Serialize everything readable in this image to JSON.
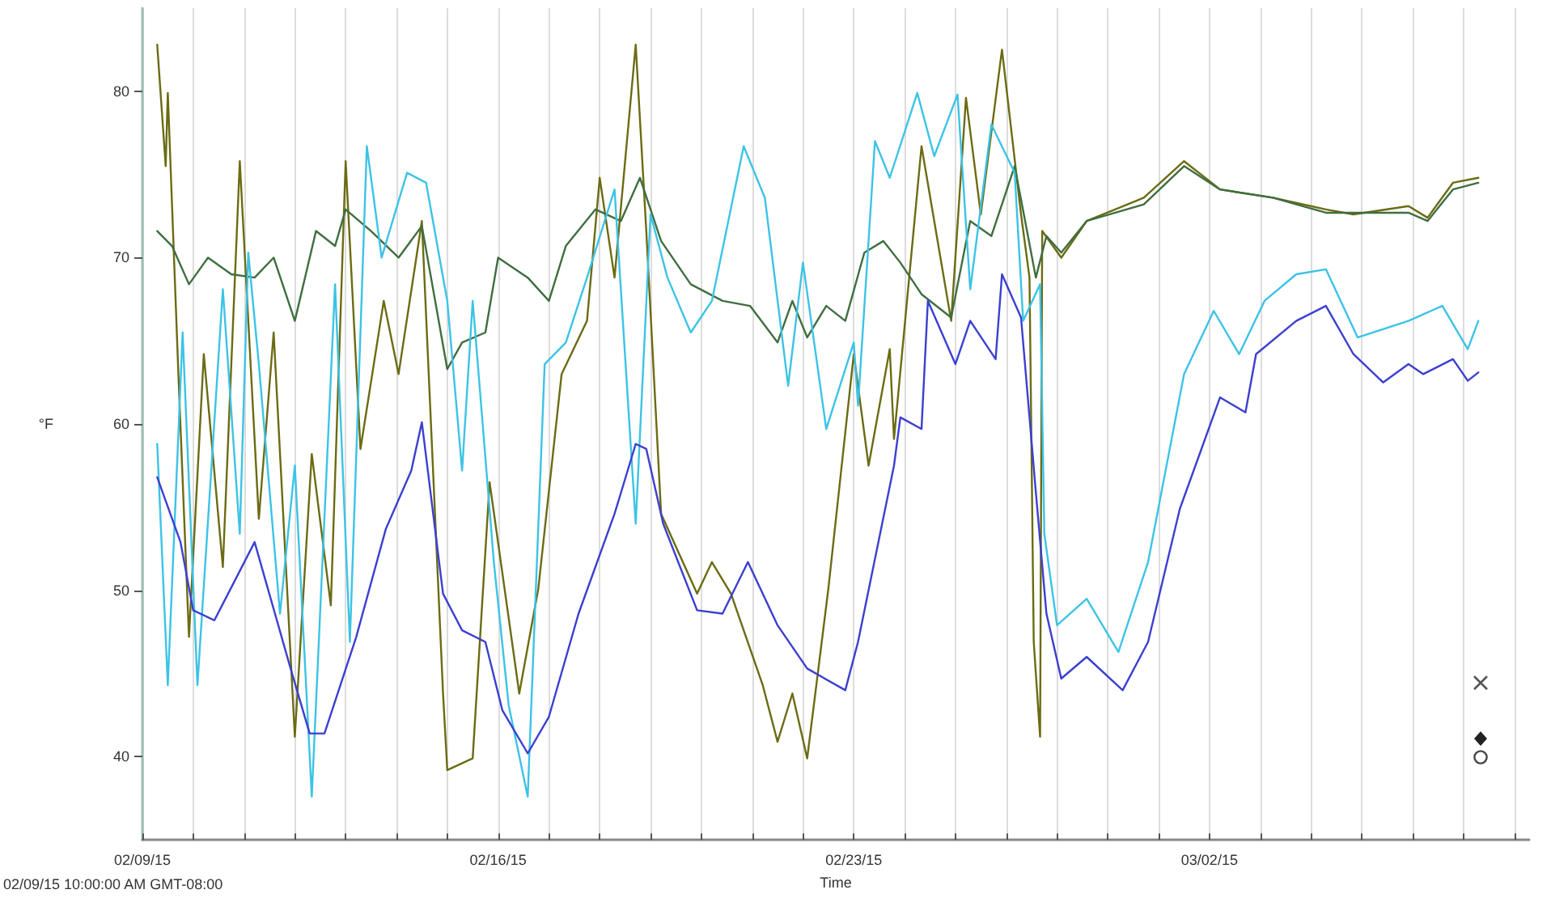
{
  "chart_data": {
    "type": "line",
    "xlabel": "Time",
    "ylabel": "°F",
    "annotations": [
      "02/09/15 10:00:00 AM GMT-08:00"
    ],
    "xlim": [
      "--02-09",
      "--03-08T07:00"
    ],
    "ylim": [
      35,
      85
    ],
    "xticks": [
      {
        "value": "--02-09",
        "label": "02/09/15"
      },
      {
        "value": "--02-10",
        "label": null
      },
      {
        "value": "--02-11",
        "label": null
      },
      {
        "value": "--02-12",
        "label": null
      },
      {
        "value": "--02-13",
        "label": null
      },
      {
        "value": "--02-14",
        "label": null
      },
      {
        "value": "--02-15",
        "label": null
      },
      {
        "value": "--02-16",
        "label": "02/16/15"
      },
      {
        "value": "--02-17",
        "label": null
      },
      {
        "value": "--02-18",
        "label": null
      },
      {
        "value": "--02-19",
        "label": null
      },
      {
        "value": "--02-20",
        "label": null
      },
      {
        "value": "--02-21",
        "label": null
      },
      {
        "value": "--02-22",
        "label": null
      },
      {
        "value": "--02-23",
        "label": "02/23/15"
      },
      {
        "value": "--02-24",
        "label": null
      },
      {
        "value": "--02-25",
        "label": null
      },
      {
        "value": "--02-26",
        "label": null
      },
      {
        "value": "--02-27",
        "label": null
      },
      {
        "value": "--02-28",
        "label": null
      },
      {
        "value": "--03-01",
        "label": null
      },
      {
        "value": "--03-02",
        "label": "03/02/15"
      },
      {
        "value": "--03-03",
        "label": null
      },
      {
        "value": "--03-04",
        "label": null
      },
      {
        "value": "--03-05",
        "label": null
      },
      {
        "value": "--03-06",
        "label": null
      },
      {
        "value": "--03-07",
        "label": null
      },
      {
        "value": "--03-08",
        "label": null
      }
    ],
    "yticks": [
      40,
      50,
      60,
      70,
      80
    ],
    "grid": "x",
    "marker": "none",
    "line_style": "solid",
    "series": [
      {
        "color": "#6b6b14",
        "x": [
          "--02-09T07:00",
          "--02-09T11:00",
          "--02-09T12:00",
          "--02-09T17:00",
          "--02-09T22:00",
          "--02-10T05:00",
          "--02-10T14:00",
          "--02-10T22:00",
          "--02-11T07:00",
          "--02-11T14:00",
          "--02-12T00:00",
          "--02-12T08:00",
          "--02-12T17:00",
          "--02-13T00:00",
          "--02-13T07:00",
          "--02-13T18:00",
          "--02-14T01:00",
          "--02-14T12:00",
          "--02-14T22:00",
          "--02-15T00:00",
          "--02-15T12:00",
          "--02-15T20:00",
          "--02-16T10:00",
          "--02-16T19:00",
          "--02-17T06:00",
          "--02-17T18:00",
          "--02-18T00:00",
          "--02-18T07:00",
          "--02-18T17:00",
          "--02-18T22:00",
          "--02-19T05:00",
          "--02-19T22:00",
          "--02-20T05:00",
          "--02-20T14:00",
          "--02-21T05:00",
          "--02-21T12:00",
          "--02-21T19:00",
          "--02-22T02:00",
          "--02-22T12:00",
          "--02-23T00:00",
          "--02-23T07:00",
          "--02-23T17:00",
          "--02-23T19:00",
          "--02-24T08:00",
          "--02-24T22:00",
          "--02-25T05:00",
          "--02-25T12:00",
          "--02-25T22:00",
          "--02-26T07:00",
          "--02-26T11:00",
          "--02-26T13:00",
          "--02-26T16:00",
          "--02-26T17:00",
          "--02-27T02:00",
          "--02-27T14:00",
          "--02-28T17:00",
          "--03-01T12:00",
          "--03-02T05:00",
          "--03-03T06:00",
          "--03-04T07:00",
          "--03-04T20:00",
          "--03-05T22:00",
          "--03-06T07:00",
          "--03-06T19:00",
          "--03-07T07:00"
        ],
        "values": [
          82.8,
          75.5,
          79.9,
          63.0,
          47.2,
          64.2,
          51.4,
          75.8,
          54.3,
          65.5,
          41.2,
          58.2,
          49.1,
          75.8,
          58.5,
          67.4,
          63.0,
          72.2,
          43.8,
          39.2,
          39.9,
          56.5,
          43.8,
          50.1,
          63.0,
          66.2,
          74.8,
          68.8,
          82.8,
          71.6,
          54.6,
          49.8,
          51.7,
          49.8,
          44.3,
          40.9,
          43.8,
          39.9,
          50.1,
          64.2,
          57.5,
          64.5,
          59.1,
          76.7,
          66.2,
          79.6,
          72.6,
          82.5,
          72.6,
          68.8,
          46.9,
          41.2,
          71.6,
          70.0,
          72.2,
          73.6,
          75.8,
          74.1,
          73.6,
          72.9,
          72.6,
          73.1,
          72.4,
          74.5,
          74.8
        ]
      },
      {
        "color": "#3f6e3f",
        "x": [
          "--02-09T07:00",
          "--02-09T14:00",
          "--02-09T22:00",
          "--02-10T07:00",
          "--02-10T18:00",
          "--02-11T05:00",
          "--02-11T14:00",
          "--02-12T00:00",
          "--02-12T10:00",
          "--02-12T19:00",
          "--02-13T00:00",
          "--02-13T12:00",
          "--02-14T01:00",
          "--02-14T12:00",
          "--02-15T00:00",
          "--02-15T07:00",
          "--02-15T18:00",
          "--02-16T00:00",
          "--02-16T14:00",
          "--02-17T00:00",
          "--02-17T08:00",
          "--02-17T22:00",
          "--02-18T10:00",
          "--02-18T19:00",
          "--02-19T05:00",
          "--02-19T19:00",
          "--02-20T10:00",
          "--02-20T23:00",
          "--02-21T12:00",
          "--02-21T19:00",
          "--02-22T02:00",
          "--02-22T11:00",
          "--02-22T20:00",
          "--02-23T05:00",
          "--02-23T14:00",
          "--02-23T22:00",
          "--02-24T08:00",
          "--02-24T22:00",
          "--02-25T07:00",
          "--02-25T17:00",
          "--02-26T04:00",
          "--02-26T14:00",
          "--02-26T19:00",
          "--02-27T02:00",
          "--02-27T14:00",
          "--02-28T17:00",
          "--03-01T12:00",
          "--03-02T05:00",
          "--03-03T06:00",
          "--03-04T07:00",
          "--03-05T22:00",
          "--03-06T07:00",
          "--03-06T19:00",
          "--03-07T07:00"
        ],
        "values": [
          71.6,
          70.7,
          68.4,
          70.0,
          69.0,
          68.8,
          70.0,
          66.2,
          71.6,
          70.7,
          72.9,
          71.6,
          70.0,
          71.9,
          63.3,
          64.9,
          65.5,
          70.0,
          68.8,
          67.4,
          70.7,
          72.9,
          72.2,
          74.8,
          71.0,
          68.4,
          67.4,
          67.1,
          64.9,
          67.4,
          65.2,
          67.1,
          66.2,
          70.3,
          71.0,
          69.7,
          67.8,
          66.4,
          72.2,
          71.3,
          75.5,
          68.8,
          71.3,
          70.3,
          72.2,
          73.2,
          75.5,
          74.1,
          73.6,
          72.7,
          72.7,
          72.2,
          74.1,
          74.5
        ]
      },
      {
        "color": "#3cc3e6",
        "x": [
          "--02-09T07:00",
          "--02-09T12:00",
          "--02-09T19:00",
          "--02-10T02:00",
          "--02-10T14:00",
          "--02-10T22:00",
          "--02-11T02:00",
          "--02-11T07:00",
          "--02-11T17:00",
          "--02-12T00:00",
          "--02-12T08:00",
          "--02-12T19:00",
          "--02-13T02:00",
          "--02-13T10:00",
          "--02-13T17:00",
          "--02-14T05:00",
          "--02-14T14:00",
          "--02-15T00:00",
          "--02-15T07:00",
          "--02-15T12:00",
          "--02-15T22:00",
          "--02-16T05:00",
          "--02-16T14:00",
          "--02-16T22:00",
          "--02-17T08:00",
          "--02-17T18:00",
          "--02-18T07:00",
          "--02-18T17:00",
          "--02-19T00:00",
          "--02-19T08:00",
          "--02-19T19:00",
          "--02-20T05:00",
          "--02-20T20:00",
          "--02-21T06:00",
          "--02-21T17:00",
          "--02-22T00:00",
          "--02-22T11:00",
          "--02-23T00:00",
          "--02-23T02:00",
          "--02-23T10:00",
          "--02-23T17:00",
          "--02-24T06:00",
          "--02-24T14:00",
          "--02-25T01:00",
          "--02-25T07:00",
          "--02-25T17:00",
          "--02-26T04:00",
          "--02-26T08:00",
          "--02-26T16:00",
          "--02-26T18:00",
          "--02-27T00:00",
          "--02-27T14:00",
          "--02-28T05:00",
          "--02-28T19:00",
          "--03-01T12:00",
          "--03-02T02:00",
          "--03-02T14:00",
          "--03-03T02:00",
          "--03-03T17:00",
          "--03-04T07:00",
          "--03-04T22:00",
          "--03-05T22:00",
          "--03-06T14:00",
          "--03-07T02:00",
          "--03-07T07:00"
        ],
        "values": [
          58.8,
          44.3,
          65.5,
          44.3,
          68.1,
          53.4,
          70.3,
          63.6,
          48.6,
          57.5,
          37.6,
          68.4,
          46.9,
          76.7,
          70.0,
          75.1,
          74.5,
          67.4,
          57.2,
          67.4,
          51.7,
          43.1,
          37.6,
          63.6,
          64.9,
          68.8,
          74.1,
          54.0,
          72.6,
          68.8,
          65.5,
          67.4,
          76.7,
          73.6,
          62.3,
          69.7,
          59.7,
          64.9,
          61.1,
          77.0,
          74.8,
          79.9,
          76.1,
          79.8,
          68.1,
          78.0,
          75.1,
          66.2,
          68.4,
          53.4,
          47.9,
          49.5,
          46.3,
          51.7,
          63.0,
          66.8,
          64.2,
          67.4,
          69.0,
          69.3,
          65.2,
          66.2,
          67.1,
          64.5,
          66.2
        ]
      },
      {
        "color": "#3b3fd0",
        "x": [
          "--02-09T07:00",
          "--02-09T18:00",
          "--02-10T00:00",
          "--02-10T10:00",
          "--02-11T05:00",
          "--02-11T22:00",
          "--02-12T07:00",
          "--02-12T14:00",
          "--02-13T05:00",
          "--02-13T19:00",
          "--02-14T07:00",
          "--02-14T12:00",
          "--02-14T22:00",
          "--02-15T07:00",
          "--02-15T18:00",
          "--02-16T02:00",
          "--02-16T14:00",
          "--02-17T00:00",
          "--02-17T14:00",
          "--02-18T07:00",
          "--02-18T17:00",
          "--02-18T22:00",
          "--02-19T06:00",
          "--02-19T22:00",
          "--02-20T10:00",
          "--02-20T22:00",
          "--02-21T12:00",
          "--02-22T02:00",
          "--02-22T20:00",
          "--02-23T02:00",
          "--02-23T19:00",
          "--02-23T22:00",
          "--02-24T08:00",
          "--02-24T11:00",
          "--02-25T00:00",
          "--02-25T07:00",
          "--02-25T19:00",
          "--02-25T22:00",
          "--02-26T07:00",
          "--02-26T14:00",
          "--02-26T19:00",
          "--02-27T02:00",
          "--02-27T14:00",
          "--02-28T07:00",
          "--02-28T19:00",
          "--03-01T10:00",
          "--03-02T05:00",
          "--03-02T17:00",
          "--03-02T22:00",
          "--03-03T17:00",
          "--03-04T07:00",
          "--03-04T20:00",
          "--03-05T10:00",
          "--03-05T22:00",
          "--03-06T05:00",
          "--03-06T19:00",
          "--03-07T02:00",
          "--03-07T07:00"
        ],
        "values": [
          56.8,
          52.9,
          48.8,
          48.2,
          52.9,
          45.3,
          41.4,
          41.4,
          47.2,
          53.7,
          57.2,
          60.1,
          49.8,
          47.6,
          46.9,
          42.8,
          40.2,
          42.4,
          48.6,
          54.6,
          58.8,
          58.5,
          54.0,
          48.8,
          48.6,
          51.7,
          47.9,
          45.3,
          44.0,
          46.9,
          57.5,
          60.4,
          59.7,
          67.4,
          63.6,
          66.2,
          63.9,
          69.0,
          66.4,
          55.9,
          48.6,
          44.7,
          46.0,
          44.0,
          46.9,
          54.9,
          61.6,
          60.7,
          64.2,
          66.2,
          67.1,
          64.2,
          62.5,
          63.6,
          63.0,
          63.9,
          62.6,
          63.1
        ]
      }
    ]
  }
}
